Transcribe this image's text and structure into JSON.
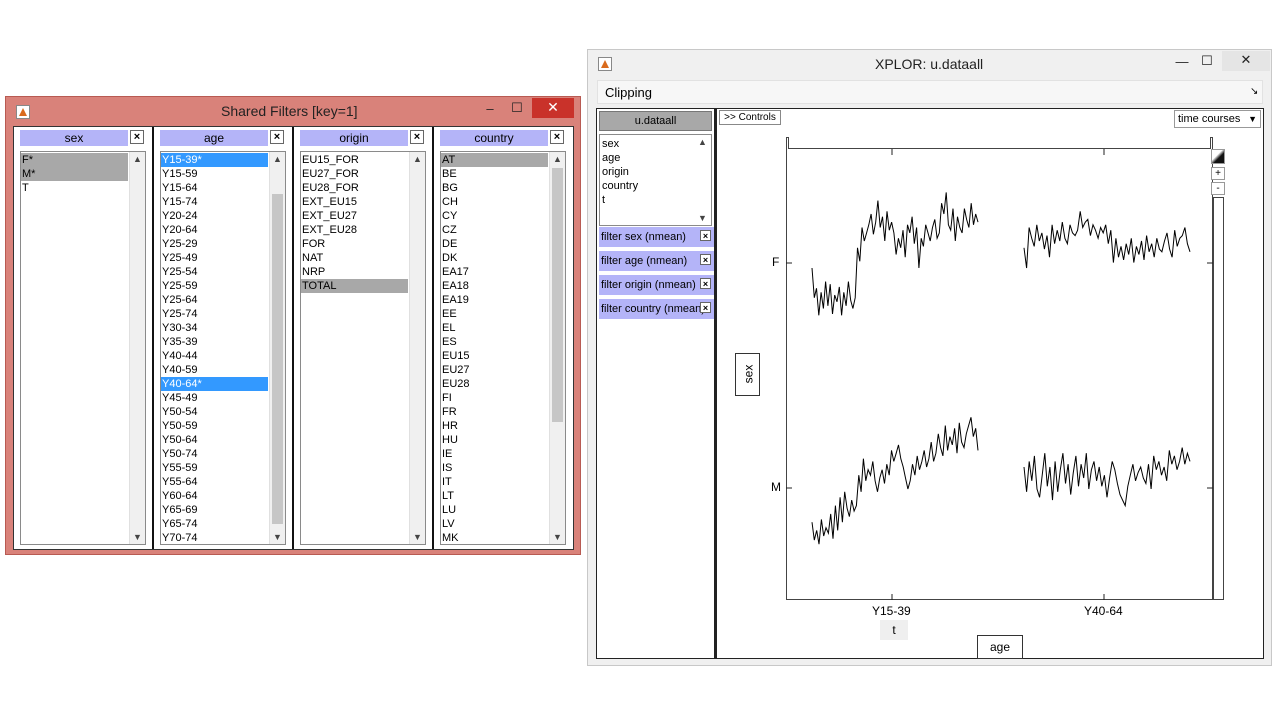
{
  "shared_filters": {
    "title": "Shared Filters [key=1]",
    "panels": [
      {
        "header": "sex",
        "items": [
          "F*",
          "M*",
          "T"
        ]
      },
      {
        "header": "age",
        "items": [
          "Y15-39*",
          "Y15-59",
          "Y15-64",
          "Y15-74",
          "Y20-24",
          "Y20-64",
          "Y25-29",
          "Y25-49",
          "Y25-54",
          "Y25-59",
          "Y25-64",
          "Y25-74",
          "Y30-34",
          "Y35-39",
          "Y40-44",
          "Y40-59",
          "Y40-64*",
          "Y45-49",
          "Y50-54",
          "Y50-59",
          "Y50-64",
          "Y50-74",
          "Y55-59",
          "Y55-64",
          "Y60-64",
          "Y65-69",
          "Y65-74",
          "Y70-74"
        ]
      },
      {
        "header": "origin",
        "items": [
          "EU15_FOR",
          "EU27_FOR",
          "EU28_FOR",
          "EXT_EU15",
          "EXT_EU27",
          "EXT_EU28",
          "FOR",
          "NAT",
          "NRP",
          "TOTAL"
        ]
      },
      {
        "header": "country",
        "items": [
          "AT",
          "BE",
          "BG",
          "CH",
          "CY",
          "CZ",
          "DE",
          "DK",
          "EA17",
          "EA18",
          "EA19",
          "EE",
          "EL",
          "ES",
          "EU15",
          "EU27",
          "EU28",
          "FI",
          "FR",
          "HR",
          "HU",
          "IE",
          "IS",
          "IT",
          "LT",
          "LU",
          "LV",
          "MK"
        ]
      }
    ],
    "close_glyph": "×",
    "scroll_up": "▲",
    "scroll_down": "▼",
    "minimize": "–",
    "maximize": "☐",
    "close": "✕"
  },
  "xplor": {
    "title": "XPLOR: u.dataall",
    "menu": "Clipping",
    "menu_corner": "↘",
    "dataset": "u.dataall",
    "dimensions": [
      "sex",
      "age",
      "origin",
      "country",
      "t"
    ],
    "filters": [
      "filter sex (nmean)",
      "filter age (nmean)",
      "filter origin (nmean)",
      "filter country (nmean)"
    ],
    "controls_button": ">> Controls",
    "display_mode": "time courses",
    "y_axis_button": "sex",
    "y_ticks": [
      "F",
      "M"
    ],
    "x_ticks": [
      "Y15-39",
      "Y40-64"
    ],
    "t_label": "t",
    "x_axis_button": "age",
    "plus": "+",
    "minus": "-",
    "minimize": "—",
    "maximize": "☐",
    "close": "✕",
    "dd_arrow": "▼",
    "filter_x": "×"
  },
  "chart_data": {
    "type": "line",
    "title": "",
    "xlabel": "t",
    "ylabel": "sex",
    "rows": [
      "F",
      "M"
    ],
    "columns": [
      "Y15-39",
      "Y40-64"
    ],
    "panels": [
      {
        "row": "F",
        "column": "Y15-39",
        "values": [
          0.4,
          0.18,
          0.25,
          0.05,
          0.22,
          0.1,
          0.3,
          0.12,
          0.28,
          0.06,
          0.2,
          0.15,
          0.26,
          0.05,
          0.22,
          0.12,
          0.3,
          0.16,
          0.1,
          0.18,
          0.55,
          0.45,
          0.7,
          0.6,
          0.66,
          0.72,
          0.8,
          0.65,
          0.74,
          0.9,
          0.7,
          0.78,
          0.6,
          0.82,
          0.68,
          0.74,
          0.66,
          0.5,
          0.62,
          0.55,
          0.68,
          0.48,
          0.72,
          0.66,
          0.78,
          0.58,
          0.7,
          0.4,
          0.62,
          0.56,
          0.72,
          0.66,
          0.6,
          0.7,
          0.76,
          0.62,
          0.66,
          0.88,
          0.8,
          0.96,
          0.72,
          0.68,
          0.84,
          0.6,
          0.78,
          0.7,
          0.66,
          0.84,
          0.76,
          0.7,
          0.88,
          0.72,
          0.8,
          0.74
        ]
      },
      {
        "row": "F",
        "column": "Y40-64",
        "values": [
          0.55,
          0.4,
          0.7,
          0.62,
          0.56,
          0.72,
          0.6,
          0.66,
          0.54,
          0.64,
          0.48,
          0.72,
          0.58,
          0.68,
          0.6,
          0.74,
          0.62,
          0.58,
          0.72,
          0.66,
          0.64,
          0.68,
          0.82,
          0.7,
          0.74,
          0.76,
          0.64,
          0.72,
          0.68,
          0.62,
          0.7,
          0.66,
          0.72,
          0.58,
          0.68,
          0.44,
          0.62,
          0.48,
          0.56,
          0.46,
          0.58,
          0.5,
          0.62,
          0.44,
          0.56,
          0.5,
          0.6,
          0.46,
          0.64,
          0.52,
          0.58,
          0.48,
          0.62,
          0.54,
          0.52,
          0.6,
          0.66,
          0.54,
          0.48,
          0.68,
          0.56,
          0.62,
          0.64,
          0.7,
          0.58,
          0.52
        ]
      },
      {
        "row": "M",
        "column": "Y15-39",
        "values": [
          0.18,
          0.05,
          0.12,
          0.02,
          0.2,
          0.08,
          0.14,
          0.1,
          0.24,
          0.06,
          0.3,
          0.12,
          0.36,
          0.18,
          0.4,
          0.28,
          0.22,
          0.34,
          0.26,
          0.3,
          0.52,
          0.4,
          0.64,
          0.48,
          0.56,
          0.52,
          0.62,
          0.48,
          0.4,
          0.5,
          0.56,
          0.46,
          0.6,
          0.52,
          0.7,
          0.62,
          0.68,
          0.74,
          0.64,
          0.58,
          0.5,
          0.42,
          0.48,
          0.6,
          0.52,
          0.66,
          0.56,
          0.62,
          0.7,
          0.58,
          0.64,
          0.76,
          0.62,
          0.68,
          0.82,
          0.72,
          0.66,
          0.88,
          0.7,
          0.8,
          0.74,
          0.86,
          0.68,
          0.9,
          0.76,
          0.72,
          0.82,
          0.88,
          0.94,
          0.8,
          0.86,
          0.7
        ]
      },
      {
        "row": "M",
        "column": "Y40-64",
        "values": [
          0.58,
          0.4,
          0.62,
          0.48,
          0.66,
          0.42,
          0.36,
          0.52,
          0.68,
          0.44,
          0.58,
          0.34,
          0.62,
          0.4,
          0.56,
          0.68,
          0.46,
          0.6,
          0.38,
          0.54,
          0.66,
          0.44,
          0.6,
          0.5,
          0.68,
          0.42,
          0.56,
          0.62,
          0.48,
          0.58,
          0.44,
          0.52,
          0.36,
          0.5,
          0.62,
          0.56,
          0.46,
          0.38,
          0.34,
          0.3,
          0.44,
          0.52,
          0.6,
          0.48,
          0.54,
          0.58,
          0.5,
          0.46,
          0.6,
          0.42,
          0.66,
          0.56,
          0.62,
          0.52,
          0.58,
          0.48,
          0.7,
          0.6,
          0.66,
          0.56,
          0.62,
          0.72,
          0.6,
          0.68,
          0.62
        ]
      }
    ]
  }
}
